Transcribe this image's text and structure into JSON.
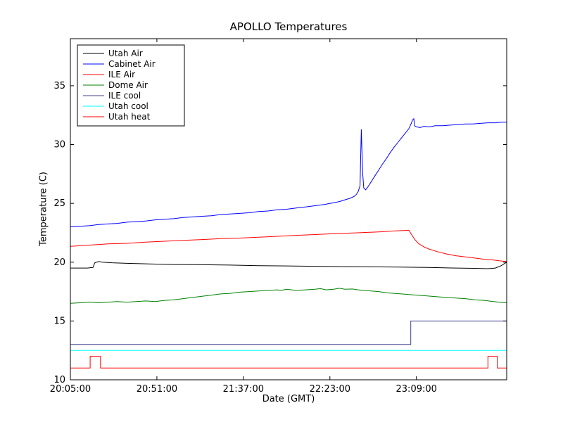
{
  "chart_data": {
    "type": "line",
    "title": "APOLLO Temperatures",
    "xlabel": "Date (GMT)",
    "ylabel": "Temperature (C)",
    "x_unit": "minutes since 20:05:00 GMT",
    "xlim": [
      0,
      232
    ],
    "ylim": [
      10,
      39
    ],
    "grid": false,
    "legend_position": "upper left",
    "xticks": {
      "values": [
        0,
        46,
        92,
        138,
        184
      ],
      "labels": [
        "20:05:00",
        "20:51:00",
        "21:37:00",
        "22:23:00",
        "23:09:00"
      ]
    },
    "yticks": [
      10,
      15,
      20,
      25,
      30,
      35
    ],
    "series": [
      {
        "name": "Utah Air",
        "color": "#000000",
        "points": [
          [
            0,
            19.5
          ],
          [
            5,
            19.5
          ],
          [
            9,
            19.5
          ],
          [
            12,
            19.55
          ],
          [
            13,
            19.95
          ],
          [
            15,
            20.05
          ],
          [
            17,
            20.0
          ],
          [
            22,
            19.95
          ],
          [
            30,
            19.9
          ],
          [
            42,
            19.85
          ],
          [
            55,
            19.8
          ],
          [
            70,
            19.78
          ],
          [
            85,
            19.75
          ],
          [
            100,
            19.7
          ],
          [
            115,
            19.68
          ],
          [
            130,
            19.65
          ],
          [
            145,
            19.62
          ],
          [
            160,
            19.6
          ],
          [
            175,
            19.58
          ],
          [
            190,
            19.55
          ],
          [
            205,
            19.5
          ],
          [
            215,
            19.48
          ],
          [
            222,
            19.45
          ],
          [
            226,
            19.5
          ],
          [
            229,
            19.7
          ],
          [
            232,
            20.0
          ]
        ]
      },
      {
        "name": "Cabinet Air",
        "color": "#0000ff",
        "points": [
          [
            0,
            23.0
          ],
          [
            5,
            23.05
          ],
          [
            10,
            23.1
          ],
          [
            15,
            23.2
          ],
          [
            20,
            23.25
          ],
          [
            25,
            23.3
          ],
          [
            30,
            23.4
          ],
          [
            35,
            23.45
          ],
          [
            40,
            23.5
          ],
          [
            45,
            23.6
          ],
          [
            50,
            23.65
          ],
          [
            55,
            23.7
          ],
          [
            60,
            23.8
          ],
          [
            65,
            23.85
          ],
          [
            70,
            23.9
          ],
          [
            75,
            23.95
          ],
          [
            80,
            24.05
          ],
          [
            85,
            24.1
          ],
          [
            90,
            24.15
          ],
          [
            95,
            24.2
          ],
          [
            100,
            24.3
          ],
          [
            105,
            24.35
          ],
          [
            110,
            24.45
          ],
          [
            115,
            24.5
          ],
          [
            120,
            24.6
          ],
          [
            125,
            24.7
          ],
          [
            130,
            24.8
          ],
          [
            135,
            24.9
          ],
          [
            140,
            25.05
          ],
          [
            143,
            25.15
          ],
          [
            146,
            25.3
          ],
          [
            149,
            25.45
          ],
          [
            151,
            25.6
          ],
          [
            152,
            25.75
          ],
          [
            153,
            26.0
          ],
          [
            154,
            26.5
          ],
          [
            154.7,
            31.3
          ],
          [
            155.4,
            27.6
          ],
          [
            156,
            26.3
          ],
          [
            157,
            26.15
          ],
          [
            158,
            26.35
          ],
          [
            160,
            26.85
          ],
          [
            162,
            27.35
          ],
          [
            164,
            27.85
          ],
          [
            166,
            28.35
          ],
          [
            168,
            28.8
          ],
          [
            170,
            29.3
          ],
          [
            172,
            29.75
          ],
          [
            174,
            30.15
          ],
          [
            176,
            30.55
          ],
          [
            178,
            30.95
          ],
          [
            180,
            31.35
          ],
          [
            181,
            31.7
          ],
          [
            182,
            32.1
          ],
          [
            182.6,
            32.2
          ],
          [
            183,
            31.6
          ],
          [
            184,
            31.5
          ],
          [
            186,
            31.45
          ],
          [
            188,
            31.55
          ],
          [
            191,
            31.5
          ],
          [
            194,
            31.6
          ],
          [
            198,
            31.6
          ],
          [
            202,
            31.65
          ],
          [
            206,
            31.7
          ],
          [
            210,
            31.75
          ],
          [
            214,
            31.75
          ],
          [
            218,
            31.8
          ],
          [
            222,
            31.85
          ],
          [
            226,
            31.85
          ],
          [
            229,
            31.9
          ],
          [
            232,
            31.9
          ]
        ]
      },
      {
        "name": "ILE Air",
        "color": "#ff0000",
        "points": [
          [
            0,
            21.35
          ],
          [
            10,
            21.45
          ],
          [
            20,
            21.55
          ],
          [
            30,
            21.6
          ],
          [
            40,
            21.7
          ],
          [
            50,
            21.78
          ],
          [
            60,
            21.85
          ],
          [
            70,
            21.92
          ],
          [
            80,
            22.0
          ],
          [
            90,
            22.05
          ],
          [
            100,
            22.12
          ],
          [
            110,
            22.2
          ],
          [
            120,
            22.28
          ],
          [
            130,
            22.35
          ],
          [
            140,
            22.42
          ],
          [
            150,
            22.48
          ],
          [
            158,
            22.53
          ],
          [
            165,
            22.58
          ],
          [
            172,
            22.65
          ],
          [
            178,
            22.7
          ],
          [
            180,
            22.72
          ],
          [
            181,
            22.45
          ],
          [
            183,
            21.95
          ],
          [
            185,
            21.6
          ],
          [
            188,
            21.3
          ],
          [
            191,
            21.1
          ],
          [
            195,
            20.9
          ],
          [
            200,
            20.7
          ],
          [
            205,
            20.55
          ],
          [
            210,
            20.45
          ],
          [
            215,
            20.35
          ],
          [
            220,
            20.25
          ],
          [
            224,
            20.2
          ],
          [
            228,
            20.12
          ],
          [
            232,
            20.05
          ]
        ]
      },
      {
        "name": "Dome Air",
        "color": "#008000",
        "points": [
          [
            0,
            16.5
          ],
          [
            5,
            16.55
          ],
          [
            10,
            16.6
          ],
          [
            15,
            16.55
          ],
          [
            20,
            16.6
          ],
          [
            25,
            16.65
          ],
          [
            30,
            16.6
          ],
          [
            35,
            16.65
          ],
          [
            40,
            16.7
          ],
          [
            45,
            16.65
          ],
          [
            50,
            16.75
          ],
          [
            55,
            16.8
          ],
          [
            60,
            16.9
          ],
          [
            65,
            17.0
          ],
          [
            70,
            17.1
          ],
          [
            75,
            17.2
          ],
          [
            80,
            17.3
          ],
          [
            85,
            17.35
          ],
          [
            90,
            17.45
          ],
          [
            95,
            17.5
          ],
          [
            100,
            17.55
          ],
          [
            105,
            17.6
          ],
          [
            110,
            17.65
          ],
          [
            112,
            17.6
          ],
          [
            115,
            17.7
          ],
          [
            120,
            17.6
          ],
          [
            125,
            17.65
          ],
          [
            130,
            17.7
          ],
          [
            133,
            17.75
          ],
          [
            136,
            17.65
          ],
          [
            140,
            17.7
          ],
          [
            143,
            17.78
          ],
          [
            146,
            17.7
          ],
          [
            150,
            17.72
          ],
          [
            153,
            17.65
          ],
          [
            156,
            17.6
          ],
          [
            160,
            17.55
          ],
          [
            164,
            17.5
          ],
          [
            168,
            17.4
          ],
          [
            172,
            17.35
          ],
          [
            176,
            17.3
          ],
          [
            180,
            17.25
          ],
          [
            184,
            17.2
          ],
          [
            188,
            17.15
          ],
          [
            192,
            17.1
          ],
          [
            196,
            17.05
          ],
          [
            200,
            17.0
          ],
          [
            205,
            16.95
          ],
          [
            210,
            16.9
          ],
          [
            215,
            16.8
          ],
          [
            220,
            16.75
          ],
          [
            225,
            16.65
          ],
          [
            228,
            16.6
          ],
          [
            232,
            16.55
          ]
        ]
      },
      {
        "name": "ILE cool",
        "color": "#40408f",
        "points": [
          [
            0,
            13.0
          ],
          [
            181,
            13.0
          ],
          [
            181,
            15.0
          ],
          [
            232,
            15.0
          ]
        ]
      },
      {
        "name": "Utah cool",
        "color": "#00ffff",
        "points": [
          [
            0,
            12.5
          ],
          [
            232,
            12.5
          ]
        ]
      },
      {
        "name": "Utah heat",
        "color": "#ff0000",
        "points": [
          [
            0,
            11.0
          ],
          [
            10.5,
            11.0
          ],
          [
            10.5,
            12.0
          ],
          [
            16,
            12.0
          ],
          [
            16,
            11.0
          ],
          [
            222,
            11.0
          ],
          [
            222,
            12.0
          ],
          [
            227,
            12.0
          ],
          [
            227,
            11.0
          ],
          [
            232,
            11.0
          ]
        ]
      }
    ]
  }
}
